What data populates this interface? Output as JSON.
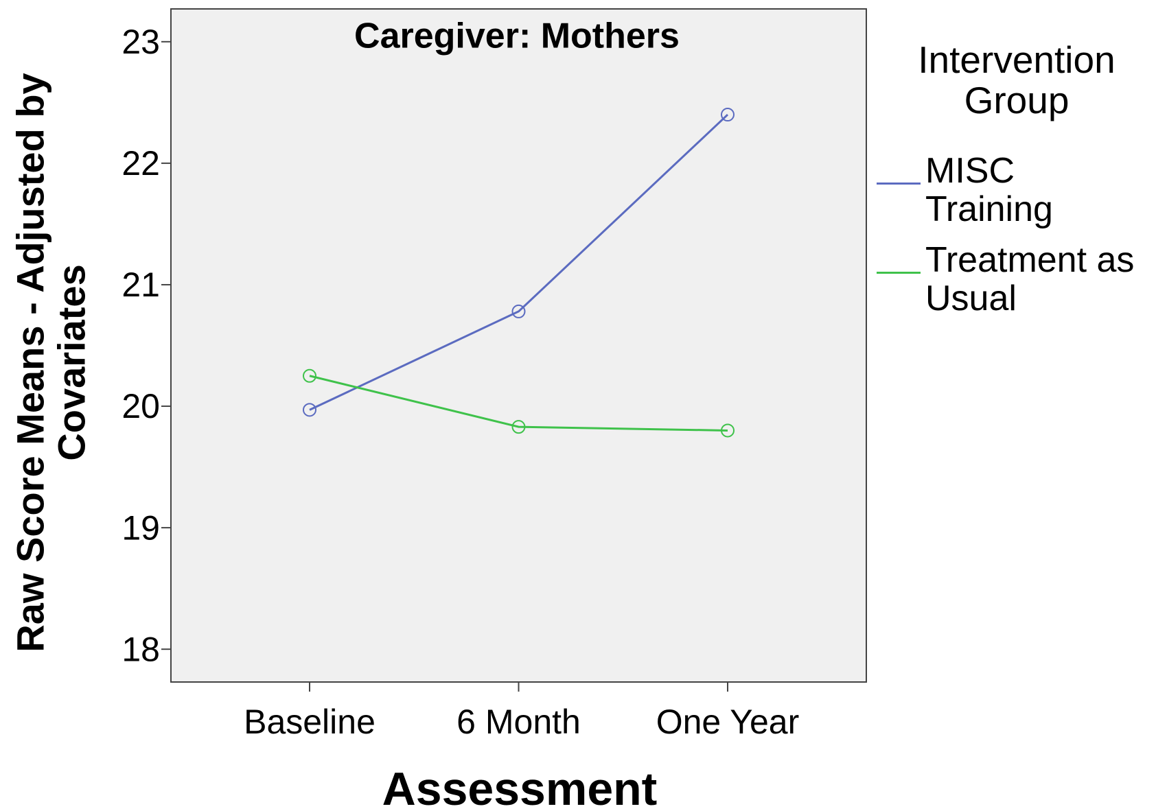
{
  "chart_data": {
    "type": "line",
    "title": "Caregiver: Mothers",
    "x_label": "Assessment",
    "y_label": "Raw Score Means - Adjusted by Covariates",
    "legend_title": "Intervention Group",
    "legend": "right",
    "categories": [
      "Baseline",
      "6 Month",
      "One Year"
    ],
    "series": [
      {
        "name": "MISC Training",
        "color": "#5b6bc0",
        "values": [
          19.97,
          20.78,
          22.4
        ]
      },
      {
        "name": "Treatment as Usual",
        "color": "#3fc24b",
        "values": [
          20.25,
          19.83,
          19.8
        ]
      }
    ],
    "ylim": [
      17.73,
      23.27
    ],
    "yticks": [
      18,
      19,
      20,
      21,
      22,
      23
    ],
    "grid": false
  }
}
